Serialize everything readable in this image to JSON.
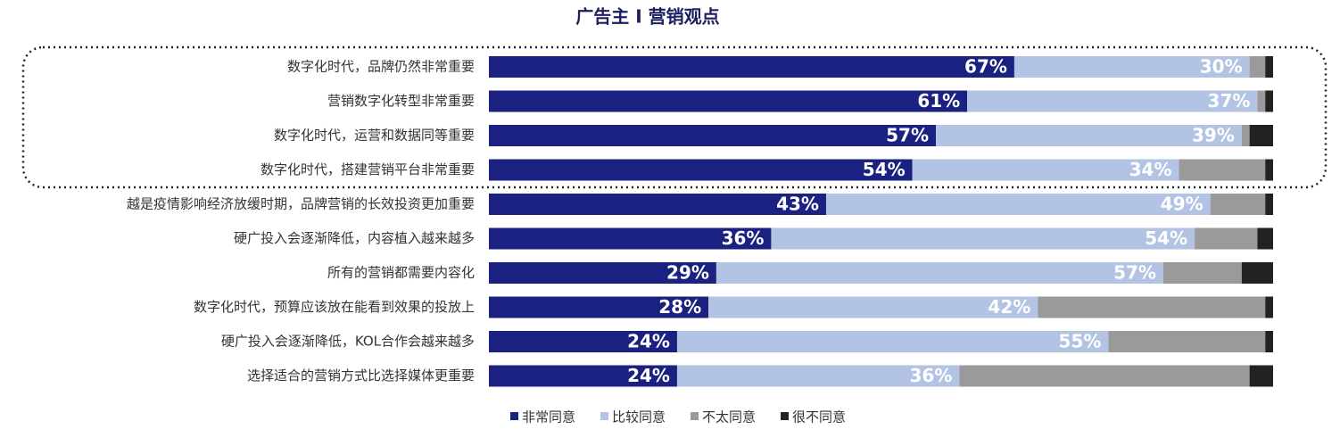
{
  "chart_data": {
    "type": "stacked_barh",
    "title": "广告主 I 营销观点",
    "categories": [
      "数字化时代，品牌仍然非常重要",
      "营销数字化转型非常重要",
      "数字化时代，运营和数据同等重要",
      "数字化时代，搭建营销平台非常重要",
      "越是疫情影响经济放缓时期，品牌营销的长效投资更加重要",
      "硬广投入会逐渐降低，内容植入越来越多",
      "所有的营销都需要内容化",
      "数字化时代，预算应该放在能看到效果的投放上",
      "硬广投入会逐渐降低，KOL合作会越来越多",
      "选择适合的营销方式比选择媒体更重要"
    ],
    "xlim": [
      0,
      100
    ],
    "legend": "bottom",
    "series": [
      {
        "name": "非常同意",
        "color": "#1b2180",
        "values": [
          67,
          61,
          57,
          54,
          43,
          36,
          29,
          28,
          24,
          24
        ],
        "value_labels": [
          "67%",
          "61%",
          "57%",
          "54%",
          "43%",
          "36%",
          "29%",
          "28%",
          "24%",
          "24%"
        ]
      },
      {
        "name": "比较同意",
        "color": "#b3c3e3",
        "values": [
          30,
          37,
          39,
          34,
          49,
          54,
          57,
          42,
          55,
          36
        ],
        "value_labels": [
          "30%",
          "37%",
          "39%",
          "34%",
          "49%",
          "54%",
          "57%",
          "42%",
          "55%",
          "36%"
        ]
      },
      {
        "name": "不太同意",
        "color": "#9a9a9a",
        "values": [
          2,
          1,
          1,
          11,
          7,
          8,
          10,
          29,
          20,
          37
        ]
      },
      {
        "name": "很不同意",
        "color": "#222222",
        "values": [
          1,
          1,
          3,
          1,
          1,
          2,
          4,
          1,
          1,
          3
        ]
      }
    ]
  }
}
